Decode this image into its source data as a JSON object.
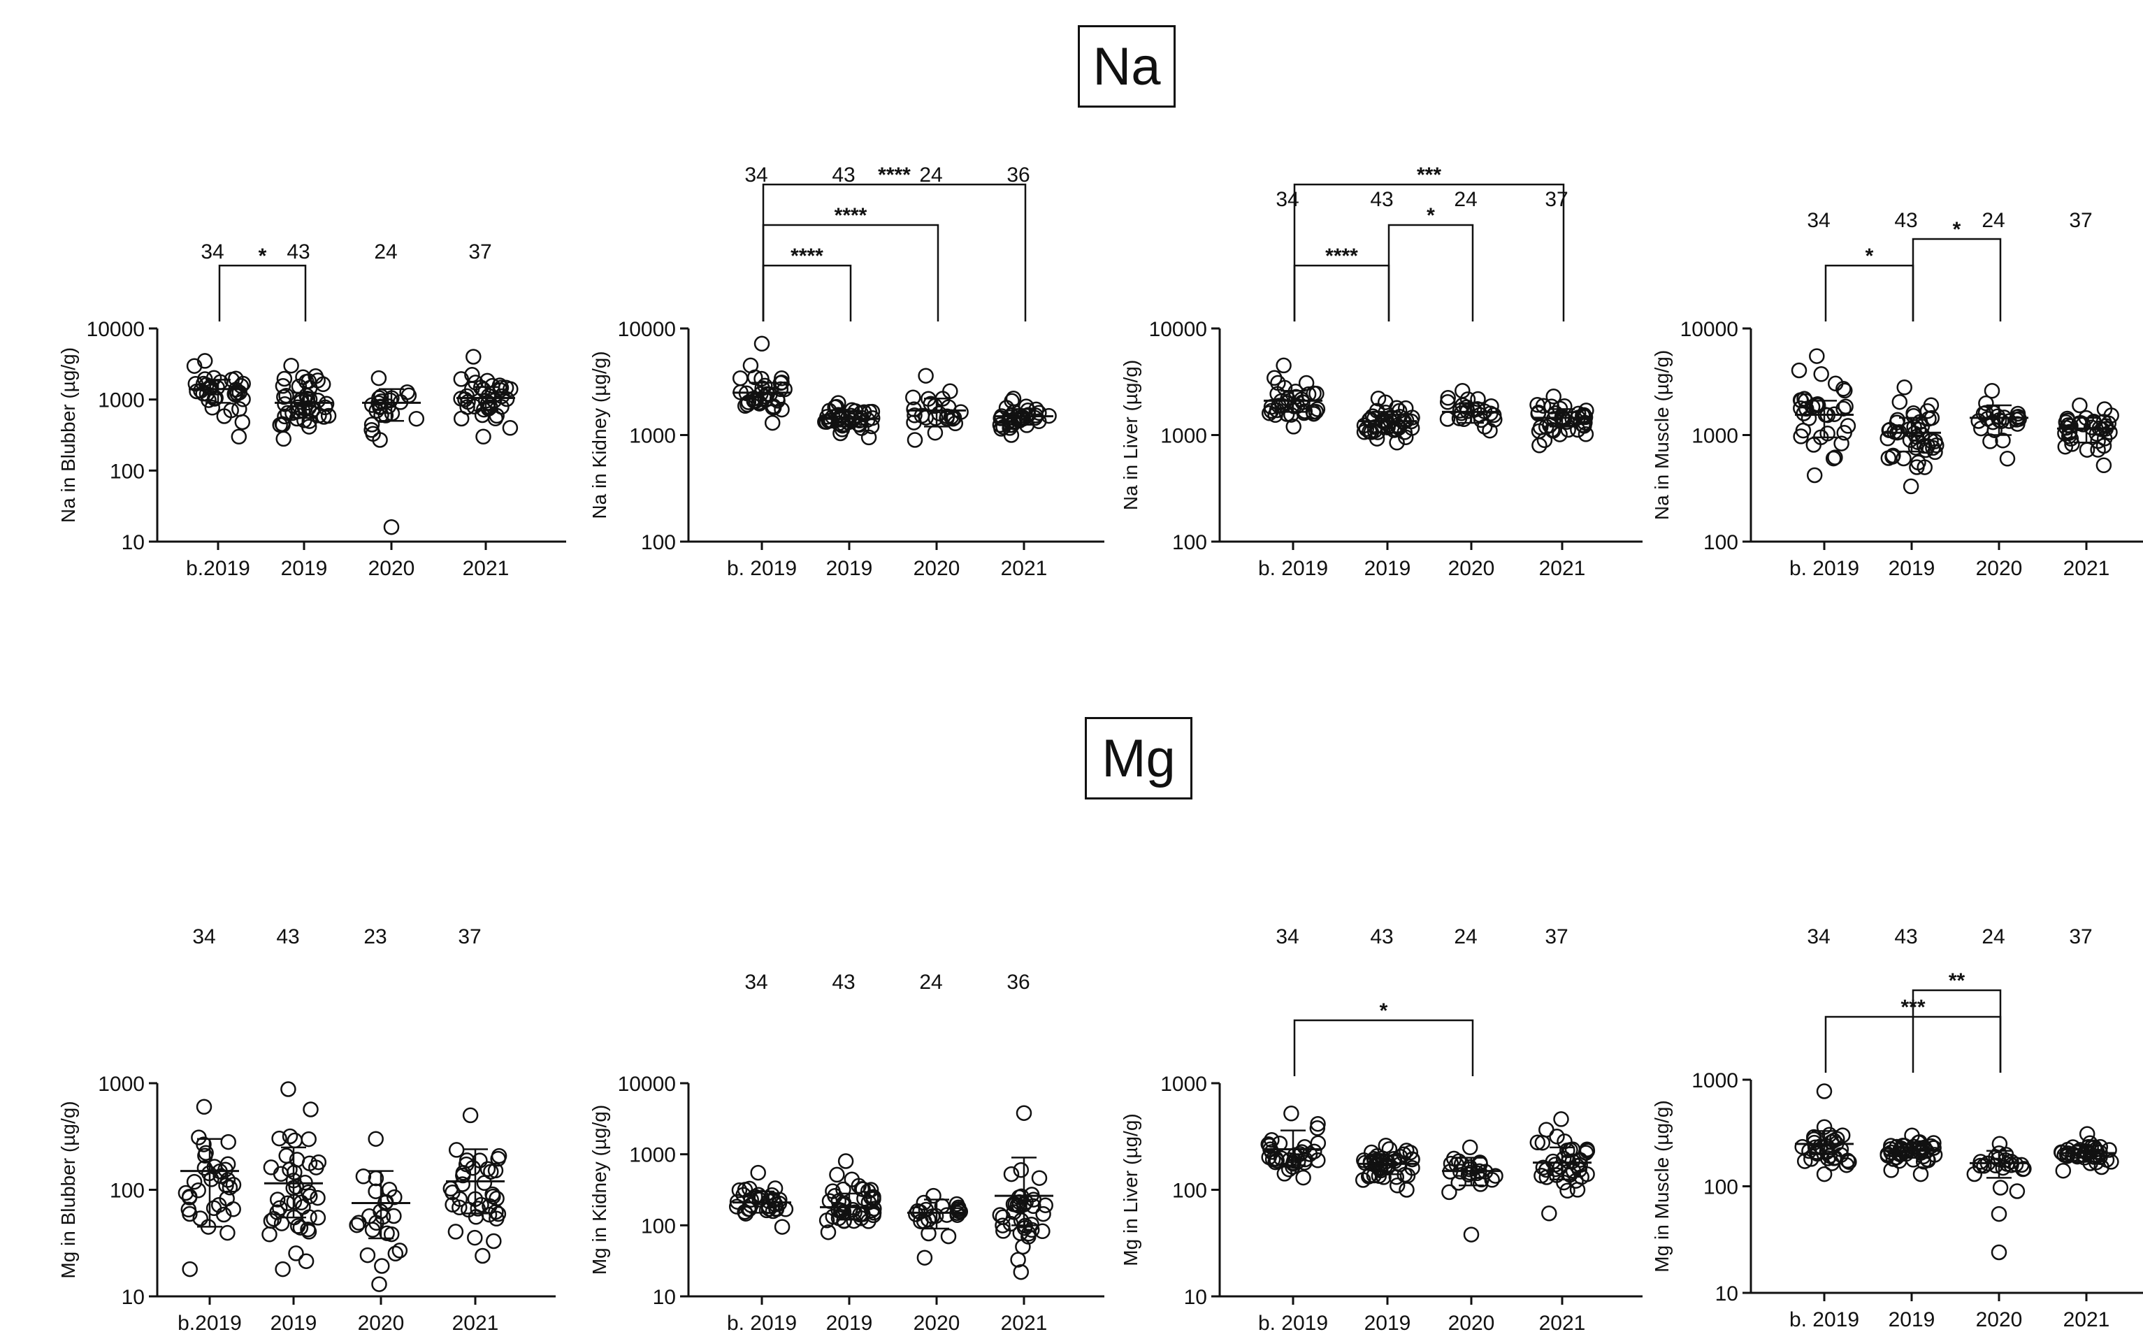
{
  "sections": [
    {
      "title": "Na"
    },
    {
      "title": "Mg"
    }
  ],
  "chart_data": [
    {
      "type": "scatter",
      "section": "Na",
      "ylabel": "Na in Blubber (µg/g)",
      "yscale": "log",
      "ylim": [
        10,
        10000
      ],
      "yticks": [
        {
          "value": 10,
          "label": "10"
        },
        {
          "value": 100,
          "label": "100"
        },
        {
          "value": 1000,
          "label": "1000"
        },
        {
          "value": 10000,
          "label": "10000"
        }
      ],
      "categories": [
        "b.2019",
        "2019",
        "2020",
        "2021"
      ],
      "n": [
        "34",
        "43",
        "24",
        "37"
      ],
      "groups": [
        {
          "n": 34,
          "min": 300,
          "max": 3500,
          "median": 1300,
          "mean": 1400,
          "sdLow": 900,
          "sdHigh": 1900
        },
        {
          "n": 43,
          "min": 280,
          "max": 3000,
          "median": 800,
          "mean": 900,
          "sdLow": 550,
          "sdHigh": 1250
        },
        {
          "n": 24,
          "min": 270,
          "max": 2000,
          "median": 850,
          "mean": 900,
          "sdLow": 500,
          "sdHigh": 1400,
          "outliers": [
            16
          ]
        },
        {
          "n": 37,
          "min": 300,
          "max": 4000,
          "median": 1000,
          "mean": 1050,
          "sdLow": 700,
          "sdHigh": 1500
        }
      ],
      "significance": [
        {
          "from": 0,
          "to": 1,
          "label": "*"
        }
      ]
    },
    {
      "type": "scatter",
      "section": "Na",
      "ylabel": "Na in Kidney (µg/g)",
      "yscale": "log",
      "ylim": [
        100,
        10000
      ],
      "yticks": [
        {
          "value": 100,
          "label": "100"
        },
        {
          "value": 1000,
          "label": "1000"
        },
        {
          "value": 10000,
          "label": "10000"
        }
      ],
      "categories": [
        "b. 2019",
        "2019",
        "2020",
        "2021"
      ],
      "n": [
        "34",
        "43",
        "24",
        "36"
      ],
      "groups": [
        {
          "n": 34,
          "min": 1300,
          "max": 4500,
          "median": 2300,
          "mean": 2500,
          "sdLow": 1900,
          "sdHigh": 3100,
          "outliers": [
            7200
          ]
        },
        {
          "n": 43,
          "min": 950,
          "max": 2000,
          "median": 1400,
          "mean": 1420,
          "sdLow": 1200,
          "sdHigh": 1650
        },
        {
          "n": 24,
          "min": 900,
          "max": 3600,
          "median": 1500,
          "mean": 1700,
          "sdLow": 1200,
          "sdHigh": 2200
        },
        {
          "n": 36,
          "min": 1000,
          "max": 2200,
          "median": 1450,
          "mean": 1500,
          "sdLow": 1250,
          "sdHigh": 1750
        }
      ],
      "significance": [
        {
          "from": 0,
          "to": 1,
          "label": "****"
        },
        {
          "from": 0,
          "to": 2,
          "label": "****"
        },
        {
          "from": 0,
          "to": 3,
          "label": "****"
        }
      ]
    },
    {
      "type": "scatter",
      "section": "Na",
      "ylabel": "Na in Liver (µg/g)",
      "yscale": "log",
      "ylim": [
        100,
        10000
      ],
      "yticks": [
        {
          "value": 100,
          "label": "100"
        },
        {
          "value": 1000,
          "label": "1000"
        },
        {
          "value": 10000,
          "label": "10000"
        }
      ],
      "categories": [
        "b. 2019",
        "2019",
        "2020",
        "2021"
      ],
      "n": [
        "34",
        "43",
        "24",
        "37"
      ],
      "groups": [
        {
          "n": 34,
          "min": 1200,
          "max": 4500,
          "median": 1900,
          "mean": 2100,
          "sdLow": 1650,
          "sdHigh": 2600
        },
        {
          "n": 43,
          "min": 850,
          "max": 2200,
          "median": 1300,
          "mean": 1350,
          "sdLow": 1050,
          "sdHigh": 1650
        },
        {
          "n": 24,
          "min": 1100,
          "max": 2600,
          "median": 1600,
          "mean": 1650,
          "sdLow": 1300,
          "sdHigh": 2000
        },
        {
          "n": 37,
          "min": 800,
          "max": 2300,
          "median": 1400,
          "mean": 1450,
          "sdLow": 1200,
          "sdHigh": 1750
        }
      ],
      "significance": [
        {
          "from": 0,
          "to": 1,
          "label": "****"
        },
        {
          "from": 1,
          "to": 2,
          "label": "*"
        },
        {
          "from": 0,
          "to": 3,
          "label": "***"
        }
      ]
    },
    {
      "type": "scatter",
      "section": "Na",
      "ylabel": "Na in Muscle (µg/g)",
      "yscale": "log",
      "ylim": [
        100,
        10000
      ],
      "yticks": [
        {
          "value": 100,
          "label": "100"
        },
        {
          "value": 1000,
          "label": "1000"
        },
        {
          "value": 10000,
          "label": "10000"
        }
      ],
      "categories": [
        "b. 2019",
        "2019",
        "2020",
        "2021"
      ],
      "n": [
        "34",
        "43",
        "24",
        "37"
      ],
      "groups": [
        {
          "n": 34,
          "min": 420,
          "max": 5500,
          "median": 1500,
          "mean": 1550,
          "sdLow": 950,
          "sdHigh": 2100
        },
        {
          "n": 43,
          "min": 330,
          "max": 2800,
          "median": 1000,
          "mean": 1050,
          "sdLow": 700,
          "sdHigh": 1450
        },
        {
          "n": 24,
          "min": 600,
          "max": 2600,
          "median": 1400,
          "mean": 1450,
          "sdLow": 1000,
          "sdHigh": 1900
        },
        {
          "n": 37,
          "min": 520,
          "max": 1900,
          "median": 1100,
          "mean": 1150,
          "sdLow": 850,
          "sdHigh": 1450
        }
      ],
      "significance": [
        {
          "from": 0,
          "to": 1,
          "label": "*"
        },
        {
          "from": 1,
          "to": 2,
          "label": "*"
        }
      ]
    },
    {
      "type": "scatter",
      "section": "Mg",
      "ylabel": "Mg in Blubber (µg/g)",
      "yscale": "log",
      "ylim": [
        10,
        1000
      ],
      "yticks": [
        {
          "value": 10,
          "label": "10"
        },
        {
          "value": 100,
          "label": "100"
        },
        {
          "value": 1000,
          "label": "1000"
        }
      ],
      "categories": [
        "b.2019",
        "2019",
        "2020",
        "2021"
      ],
      "n": [
        "34",
        "43",
        "23",
        "37"
      ],
      "groups": [
        {
          "n": 34,
          "min": 18,
          "max": 600,
          "median": 90,
          "mean": 150,
          "sdLow": 45,
          "sdHigh": 300
        },
        {
          "n": 43,
          "min": 18,
          "max": 880,
          "median": 90,
          "mean": 115,
          "sdLow": 55,
          "sdHigh": 250
        },
        {
          "n": 23,
          "min": 13,
          "max": 300,
          "median": 60,
          "mean": 75,
          "sdLow": 35,
          "sdHigh": 150
        },
        {
          "n": 37,
          "min": 24,
          "max": 500,
          "median": 90,
          "mean": 120,
          "sdLow": 60,
          "sdHigh": 240
        }
      ],
      "significance": []
    },
    {
      "type": "scatter",
      "section": "Mg",
      "ylabel": "Mg in Kidney (µg/g)",
      "yscale": "log",
      "ylim": [
        10,
        10000
      ],
      "yticks": [
        {
          "value": 10,
          "label": "10"
        },
        {
          "value": 100,
          "label": "100"
        },
        {
          "value": 1000,
          "label": "1000"
        },
        {
          "value": 10000,
          "label": "10000"
        }
      ],
      "categories": [
        "b. 2019",
        "2019",
        "2020",
        "2021"
      ],
      "n": [
        "34",
        "43",
        "24",
        "36"
      ],
      "groups": [
        {
          "n": 34,
          "min": 95,
          "max": 550,
          "median": 190,
          "mean": 210,
          "sdLow": 150,
          "sdHigh": 300
        },
        {
          "n": 43,
          "min": 80,
          "max": 800,
          "median": 170,
          "mean": 180,
          "sdLow": 120,
          "sdHigh": 280
        },
        {
          "n": 24,
          "min": 35,
          "max": 260,
          "median": 140,
          "mean": 150,
          "sdLow": 90,
          "sdHigh": 230
        },
        {
          "n": 36,
          "min": 22,
          "max": 600,
          "median": 170,
          "mean": 260,
          "sdLow": 100,
          "sdHigh": 900,
          "outliers": [
            3800
          ]
        }
      ],
      "significance": []
    },
    {
      "type": "scatter",
      "section": "Mg",
      "ylabel": "Mg in Liver (µg/g)",
      "yscale": "log",
      "ylim": [
        10,
        1000
      ],
      "yticks": [
        {
          "value": 10,
          "label": "10"
        },
        {
          "value": 100,
          "label": "100"
        },
        {
          "value": 1000,
          "label": "1000"
        }
      ],
      "categories": [
        "b. 2019",
        "2019",
        "2020",
        "2021"
      ],
      "n": [
        "34",
        "43",
        "24",
        "37"
      ],
      "groups": [
        {
          "n": 34,
          "min": 130,
          "max": 520,
          "median": 200,
          "mean": 240,
          "sdLow": 170,
          "sdHigh": 360
        },
        {
          "n": 43,
          "min": 100,
          "max": 260,
          "median": 170,
          "mean": 175,
          "sdLow": 140,
          "sdHigh": 210
        },
        {
          "n": 24,
          "min": 95,
          "max": 250,
          "median": 150,
          "mean": 150,
          "sdLow": 110,
          "sdHigh": 200,
          "outliers": [
            38
          ]
        },
        {
          "n": 37,
          "min": 60,
          "max": 460,
          "median": 170,
          "mean": 180,
          "sdLow": 125,
          "sdHigh": 250
        }
      ],
      "significance": [
        {
          "from": 0,
          "to": 2,
          "label": "*"
        }
      ]
    },
    {
      "type": "scatter",
      "section": "Mg",
      "ylabel": "Mg in Muscle (µg/g)",
      "yscale": "log",
      "ylim": [
        10,
        1000
      ],
      "yticks": [
        {
          "value": 10,
          "label": "10"
        },
        {
          "value": 100,
          "label": "100"
        },
        {
          "value": 1000,
          "label": "1000"
        }
      ],
      "categories": [
        "b. 2019",
        "2019",
        "2020",
        "2021"
      ],
      "n": [
        "34",
        "43",
        "24",
        "37"
      ],
      "groups": [
        {
          "n": 34,
          "min": 130,
          "max": 360,
          "median": 240,
          "mean": 250,
          "sdLow": 200,
          "sdHigh": 330,
          "outliers": [
            780
          ]
        },
        {
          "n": 43,
          "min": 130,
          "max": 300,
          "median": 220,
          "mean": 215,
          "sdLow": 185,
          "sdHigh": 250
        },
        {
          "n": 24,
          "min": 90,
          "max": 250,
          "median": 160,
          "mean": 165,
          "sdLow": 120,
          "sdHigh": 215,
          "outliers": [
            55,
            24
          ]
        },
        {
          "n": 37,
          "min": 140,
          "max": 310,
          "median": 200,
          "mean": 205,
          "sdLow": 170,
          "sdHigh": 240
        }
      ],
      "significance": [
        {
          "from": 0,
          "to": 2,
          "label": "***"
        },
        {
          "from": 1,
          "to": 2,
          "label": "**"
        }
      ]
    }
  ]
}
